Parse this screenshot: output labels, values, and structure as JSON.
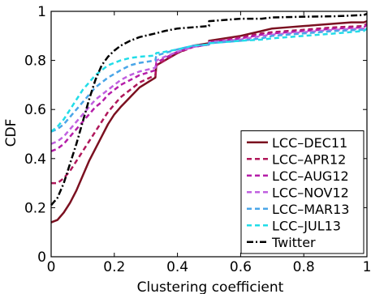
{
  "chart_data": {
    "type": "line",
    "title": "",
    "xlabel": "Clustering coefficient",
    "ylabel": "CDF",
    "xlim": [
      0,
      1
    ],
    "ylim": [
      0,
      1
    ],
    "grid": false,
    "legend_position": "bottom-right",
    "xticks": [
      "0",
      "0.2",
      "0.4",
      "0.6",
      "0.8",
      "1"
    ],
    "yticks": [
      "0",
      "0.2",
      "0.4",
      "0.6",
      "0.8",
      "1"
    ],
    "series": [
      {
        "name": "LCC–DEC11",
        "color": "#7b1020",
        "dash": "solid",
        "points": [
          [
            0,
            0.14
          ],
          [
            0.02,
            0.15
          ],
          [
            0.04,
            0.18
          ],
          [
            0.06,
            0.22
          ],
          [
            0.08,
            0.27
          ],
          [
            0.1,
            0.33
          ],
          [
            0.12,
            0.39
          ],
          [
            0.14,
            0.44
          ],
          [
            0.16,
            0.49
          ],
          [
            0.18,
            0.54
          ],
          [
            0.2,
            0.58
          ],
          [
            0.22,
            0.61
          ],
          [
            0.25,
            0.65
          ],
          [
            0.28,
            0.69
          ],
          [
            0.33,
            0.73
          ],
          [
            0.333,
            0.78
          ],
          [
            0.36,
            0.8
          ],
          [
            0.4,
            0.83
          ],
          [
            0.45,
            0.86
          ],
          [
            0.5,
            0.87
          ],
          [
            0.5,
            0.88
          ],
          [
            0.55,
            0.89
          ],
          [
            0.6,
            0.9
          ],
          [
            0.667,
            0.92
          ],
          [
            0.7,
            0.93
          ],
          [
            0.75,
            0.935
          ],
          [
            0.8,
            0.94
          ],
          [
            0.9,
            0.95
          ],
          [
            0.95,
            0.955
          ],
          [
            0.99,
            0.955
          ],
          [
            1,
            0.96
          ]
        ]
      },
      {
        "name": "LCC–APR12",
        "color": "#b0175a",
        "dash": "6,4",
        "points": [
          [
            0,
            0.3
          ],
          [
            0.02,
            0.3
          ],
          [
            0.04,
            0.32
          ],
          [
            0.06,
            0.35
          ],
          [
            0.08,
            0.39
          ],
          [
            0.1,
            0.43
          ],
          [
            0.12,
            0.47
          ],
          [
            0.14,
            0.51
          ],
          [
            0.16,
            0.55
          ],
          [
            0.18,
            0.59
          ],
          [
            0.2,
            0.62
          ],
          [
            0.22,
            0.65
          ],
          [
            0.25,
            0.68
          ],
          [
            0.28,
            0.71
          ],
          [
            0.33,
            0.74
          ],
          [
            0.333,
            0.78
          ],
          [
            0.36,
            0.8
          ],
          [
            0.4,
            0.83
          ],
          [
            0.45,
            0.855
          ],
          [
            0.5,
            0.865
          ],
          [
            0.5,
            0.875
          ],
          [
            0.55,
            0.885
          ],
          [
            0.6,
            0.895
          ],
          [
            0.667,
            0.91
          ],
          [
            0.7,
            0.915
          ],
          [
            0.8,
            0.925
          ],
          [
            0.9,
            0.935
          ],
          [
            0.99,
            0.94
          ],
          [
            1,
            0.95
          ]
        ]
      },
      {
        "name": "LCC–AUG12",
        "color": "#b51ea8",
        "dash": "6,4",
        "points": [
          [
            0,
            0.43
          ],
          [
            0.02,
            0.44
          ],
          [
            0.04,
            0.46
          ],
          [
            0.06,
            0.49
          ],
          [
            0.08,
            0.52
          ],
          [
            0.1,
            0.55
          ],
          [
            0.12,
            0.58
          ],
          [
            0.14,
            0.61
          ],
          [
            0.16,
            0.63
          ],
          [
            0.18,
            0.66
          ],
          [
            0.2,
            0.68
          ],
          [
            0.22,
            0.7
          ],
          [
            0.25,
            0.72
          ],
          [
            0.28,
            0.74
          ],
          [
            0.33,
            0.76
          ],
          [
            0.333,
            0.79
          ],
          [
            0.36,
            0.81
          ],
          [
            0.4,
            0.835
          ],
          [
            0.45,
            0.855
          ],
          [
            0.5,
            0.865
          ],
          [
            0.5,
            0.875
          ],
          [
            0.55,
            0.88
          ],
          [
            0.6,
            0.89
          ],
          [
            0.667,
            0.905
          ],
          [
            0.7,
            0.91
          ],
          [
            0.8,
            0.92
          ],
          [
            0.9,
            0.93
          ],
          [
            0.99,
            0.935
          ],
          [
            1,
            0.945
          ]
        ]
      },
      {
        "name": "LCC–NOV12",
        "color": "#c060e0",
        "dash": "6,4",
        "points": [
          [
            0,
            0.46
          ],
          [
            0.02,
            0.47
          ],
          [
            0.04,
            0.49
          ],
          [
            0.06,
            0.52
          ],
          [
            0.08,
            0.55
          ],
          [
            0.1,
            0.58
          ],
          [
            0.12,
            0.61
          ],
          [
            0.14,
            0.64
          ],
          [
            0.16,
            0.66
          ],
          [
            0.18,
            0.68
          ],
          [
            0.2,
            0.7
          ],
          [
            0.22,
            0.72
          ],
          [
            0.25,
            0.74
          ],
          [
            0.28,
            0.755
          ],
          [
            0.33,
            0.77
          ],
          [
            0.333,
            0.8
          ],
          [
            0.36,
            0.815
          ],
          [
            0.4,
            0.835
          ],
          [
            0.45,
            0.855
          ],
          [
            0.5,
            0.865
          ],
          [
            0.5,
            0.875
          ],
          [
            0.55,
            0.88
          ],
          [
            0.6,
            0.885
          ],
          [
            0.667,
            0.9
          ],
          [
            0.7,
            0.905
          ],
          [
            0.8,
            0.915
          ],
          [
            0.9,
            0.925
          ],
          [
            0.99,
            0.93
          ],
          [
            1,
            0.94
          ]
        ]
      },
      {
        "name": "LCC–MAR13",
        "color": "#4aa6e8",
        "dash": "6,4",
        "points": [
          [
            0,
            0.51
          ],
          [
            0.02,
            0.52
          ],
          [
            0.04,
            0.54
          ],
          [
            0.06,
            0.57
          ],
          [
            0.08,
            0.6
          ],
          [
            0.1,
            0.63
          ],
          [
            0.12,
            0.66
          ],
          [
            0.14,
            0.69
          ],
          [
            0.16,
            0.71
          ],
          [
            0.18,
            0.73
          ],
          [
            0.2,
            0.745
          ],
          [
            0.22,
            0.76
          ],
          [
            0.25,
            0.78
          ],
          [
            0.28,
            0.79
          ],
          [
            0.33,
            0.8
          ],
          [
            0.333,
            0.82
          ],
          [
            0.36,
            0.83
          ],
          [
            0.4,
            0.845
          ],
          [
            0.45,
            0.86
          ],
          [
            0.5,
            0.865
          ],
          [
            0.5,
            0.87
          ],
          [
            0.55,
            0.875
          ],
          [
            0.6,
            0.88
          ],
          [
            0.667,
            0.89
          ],
          [
            0.7,
            0.9
          ],
          [
            0.8,
            0.91
          ],
          [
            0.9,
            0.92
          ],
          [
            0.99,
            0.925
          ],
          [
            1,
            0.93
          ]
        ]
      },
      {
        "name": "LCC–JUL13",
        "color": "#22dde8",
        "dash": "6,4",
        "points": [
          [
            0,
            0.51
          ],
          [
            0.02,
            0.53
          ],
          [
            0.04,
            0.56
          ],
          [
            0.06,
            0.6
          ],
          [
            0.08,
            0.64
          ],
          [
            0.1,
            0.68
          ],
          [
            0.12,
            0.71
          ],
          [
            0.14,
            0.74
          ],
          [
            0.16,
            0.76
          ],
          [
            0.18,
            0.78
          ],
          [
            0.2,
            0.79
          ],
          [
            0.22,
            0.8
          ],
          [
            0.25,
            0.81
          ],
          [
            0.28,
            0.815
          ],
          [
            0.33,
            0.82
          ],
          [
            0.333,
            0.83
          ],
          [
            0.36,
            0.835
          ],
          [
            0.4,
            0.845
          ],
          [
            0.45,
            0.86
          ],
          [
            0.5,
            0.865
          ],
          [
            0.5,
            0.87
          ],
          [
            0.55,
            0.875
          ],
          [
            0.6,
            0.88
          ],
          [
            0.667,
            0.885
          ],
          [
            0.7,
            0.89
          ],
          [
            0.8,
            0.9
          ],
          [
            0.9,
            0.91
          ],
          [
            0.99,
            0.92
          ],
          [
            1,
            0.93
          ]
        ]
      },
      {
        "name": "Twitter",
        "color": "#000000",
        "dash": "8,3,2,3",
        "points": [
          [
            0,
            0.21
          ],
          [
            0.02,
            0.24
          ],
          [
            0.04,
            0.3
          ],
          [
            0.06,
            0.38
          ],
          [
            0.08,
            0.46
          ],
          [
            0.1,
            0.55
          ],
          [
            0.12,
            0.64
          ],
          [
            0.14,
            0.72
          ],
          [
            0.16,
            0.78
          ],
          [
            0.18,
            0.815
          ],
          [
            0.2,
            0.84
          ],
          [
            0.22,
            0.86
          ],
          [
            0.25,
            0.88
          ],
          [
            0.28,
            0.895
          ],
          [
            0.33,
            0.91
          ],
          [
            0.36,
            0.92
          ],
          [
            0.4,
            0.93
          ],
          [
            0.45,
            0.935
          ],
          [
            0.5,
            0.94
          ],
          [
            0.5,
            0.96
          ],
          [
            0.55,
            0.965
          ],
          [
            0.6,
            0.97
          ],
          [
            0.667,
            0.97
          ],
          [
            0.7,
            0.975
          ],
          [
            0.8,
            0.978
          ],
          [
            0.9,
            0.98
          ],
          [
            0.99,
            0.985
          ],
          [
            1,
            0.99
          ]
        ]
      }
    ]
  }
}
